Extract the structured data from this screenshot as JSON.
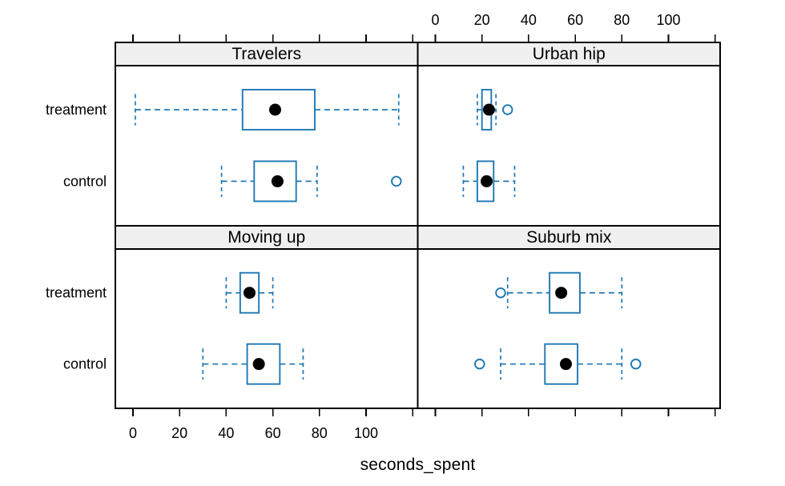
{
  "figure": {
    "background": "#FFFFFF"
  },
  "chart_data": {
    "type": "boxplot",
    "orientation": "horizontal",
    "xlabel": "seconds_spent",
    "categories": [
      "treatment",
      "control"
    ],
    "x_ticks_labeled": [
      0,
      20,
      40,
      60,
      80,
      100
    ],
    "x_ticks_unlabeled": [
      120
    ],
    "xlim": [
      -8,
      123
    ],
    "axis_layout": {
      "top_labels_over": "right-column",
      "bottom_labels_under": "left-column"
    },
    "colors": {
      "box": "#1F78B4",
      "median_dot": "#000000",
      "strip_bg": "#F0F0F0",
      "border": "#000000",
      "panel_bg": "#FFFFFF"
    },
    "panels": [
      {
        "title": "Travelers",
        "row": 0,
        "col": 0,
        "boxes": [
          {
            "group": "treatment",
            "whisker_low": 1,
            "q1": 47,
            "median": 61,
            "q3": 78,
            "whisker_high": 114,
            "outliers": []
          },
          {
            "group": "control",
            "whisker_low": 38,
            "q1": 52,
            "median": 62,
            "q3": 70,
            "whisker_high": 79,
            "outliers": [
              113
            ]
          }
        ]
      },
      {
        "title": "Urban hip",
        "row": 0,
        "col": 1,
        "boxes": [
          {
            "group": "treatment",
            "whisker_low": 18,
            "q1": 20,
            "median": 23,
            "q3": 24,
            "whisker_high": 26,
            "outliers": [
              31
            ]
          },
          {
            "group": "control",
            "whisker_low": 12,
            "q1": 18,
            "median": 22,
            "q3": 25,
            "whisker_high": 34,
            "outliers": []
          }
        ]
      },
      {
        "title": "Moving up",
        "row": 1,
        "col": 0,
        "boxes": [
          {
            "group": "treatment",
            "whisker_low": 40,
            "q1": 46,
            "median": 50,
            "q3": 54,
            "whisker_high": 60,
            "outliers": []
          },
          {
            "group": "control",
            "whisker_low": 30,
            "q1": 49,
            "median": 54,
            "q3": 63,
            "whisker_high": 73,
            "outliers": []
          }
        ]
      },
      {
        "title": "Suburb mix",
        "row": 1,
        "col": 1,
        "boxes": [
          {
            "group": "treatment",
            "whisker_low": 31,
            "q1": 49,
            "median": 54,
            "q3": 62,
            "whisker_high": 80,
            "outliers": [
              28
            ]
          },
          {
            "group": "control",
            "whisker_low": 28,
            "q1": 47,
            "median": 56,
            "q3": 61,
            "whisker_high": 80,
            "outliers": [
              19,
              86
            ]
          }
        ]
      }
    ]
  }
}
